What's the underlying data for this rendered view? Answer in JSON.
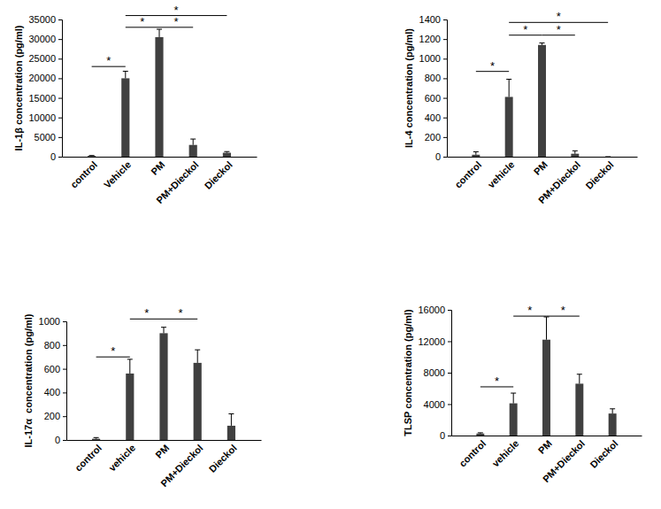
{
  "chart_data": [
    {
      "type": "bar",
      "y_label": "IL-1β concentration (pg/ml)",
      "categories": [
        "control",
        "Vehicle",
        "PM",
        "PM+Dieckol",
        "Dieckol"
      ],
      "values": [
        200,
        20000,
        30500,
        3000,
        1000
      ],
      "errors": [
        100,
        1800,
        2000,
        1500,
        300
      ],
      "color": "#404040",
      "ylim": [
        0,
        35000
      ],
      "yticks": [
        0,
        5000,
        10000,
        15000,
        20000,
        25000,
        30000,
        35000
      ],
      "significance": [
        {
          "from": 0,
          "to": 1,
          "y": 23000,
          "label": "*"
        },
        {
          "from": 1,
          "to": 2,
          "y": 33000,
          "label": "*"
        },
        {
          "from": 2,
          "to": 3,
          "y": 33000,
          "label": "*"
        },
        {
          "from": 1,
          "to": 4,
          "y": 36000,
          "label": "*"
        }
      ]
    },
    {
      "type": "bar",
      "y_label": "IL-4 concentration (pg/ml)",
      "categories": [
        "control",
        "vehicle",
        "PM",
        "PM+Dieckol",
        "Dieckol"
      ],
      "values": [
        20,
        610,
        1140,
        30,
        0
      ],
      "errors": [
        30,
        180,
        20,
        30,
        0
      ],
      "color": "#404040",
      "ylim": [
        0,
        1400
      ],
      "yticks": [
        0,
        200,
        400,
        600,
        800,
        1000,
        1200,
        1400
      ],
      "significance": [
        {
          "from": 0,
          "to": 1,
          "y": 870,
          "label": "*"
        },
        {
          "from": 1,
          "to": 2,
          "y": 1240,
          "label": "*"
        },
        {
          "from": 2,
          "to": 3,
          "y": 1240,
          "label": "*"
        },
        {
          "from": 1,
          "to": 4,
          "y": 1370,
          "label": "*"
        }
      ]
    },
    {
      "type": "bar",
      "y_label": "IL-17α  concentration (pg/ml)",
      "categories": [
        "control",
        "vehicle",
        "PM",
        "PM+Dieckol",
        "Dieckol"
      ],
      "values": [
        10,
        560,
        900,
        650,
        120
      ],
      "errors": [
        10,
        120,
        50,
        110,
        100
      ],
      "color": "#404040",
      "ylim": [
        0,
        1000
      ],
      "yticks": [
        0,
        200,
        400,
        600,
        800,
        1000
      ],
      "significance": [
        {
          "from": 0,
          "to": 1,
          "y": 700,
          "label": "*"
        },
        {
          "from": 1,
          "to": 2,
          "y": 1020,
          "label": "*"
        },
        {
          "from": 2,
          "to": 3,
          "y": 1020,
          "label": "*"
        }
      ]
    },
    {
      "type": "bar",
      "y_label": "TLSP concentration (pg/ml)",
      "categories": [
        "control",
        "vehicle",
        "PM",
        "PM+Dieckol",
        "Dieckol"
      ],
      "values": [
        250,
        4100,
        12200,
        6600,
        2800
      ],
      "errors": [
        100,
        1300,
        2900,
        1200,
        600
      ],
      "color": "#404040",
      "ylim": [
        0,
        16000
      ],
      "yticks": [
        0,
        4000,
        8000,
        12000,
        16000
      ],
      "significance": [
        {
          "from": 0,
          "to": 1,
          "y": 6200,
          "label": "*"
        },
        {
          "from": 1,
          "to": 2,
          "y": 15200,
          "label": "*"
        },
        {
          "from": 2,
          "to": 3,
          "y": 15200,
          "label": "*"
        }
      ]
    }
  ]
}
